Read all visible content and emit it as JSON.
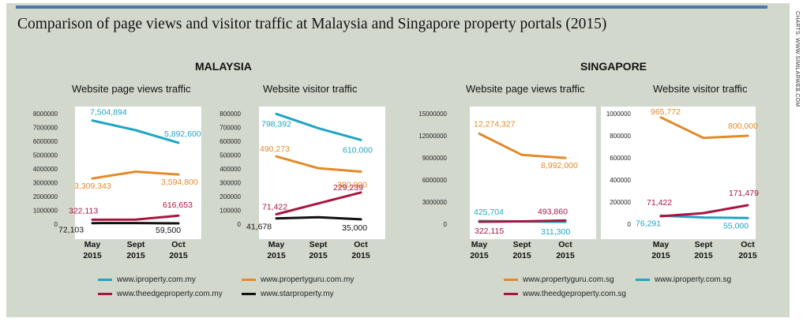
{
  "title": "Comparison of page views and visitor traffic at Malaysia and Singapore property portals (2015)",
  "credit": "CHARTS: WWW.SIMILARWEB.COM",
  "regions": {
    "malaysia": "MALAYSIA",
    "singapore": "SINGAPORE"
  },
  "colors": {
    "teal": "#1fa6c1",
    "orange": "#e38a2a",
    "crimson": "#a8163f",
    "black": "#111111",
    "background": "#d3d8cc",
    "topbar": "#4a78a8"
  },
  "legend": {
    "malaysia": [
      {
        "label": "www.iproperty.com.my",
        "color": "#1fa6c1"
      },
      {
        "label": "www.propertyguru.com.my",
        "color": "#e38a2a"
      },
      {
        "label": "www.theedgeproperty.com.my",
        "color": "#a8163f"
      },
      {
        "label": "www.starproperty.my",
        "color": "#111111"
      }
    ],
    "singapore": [
      {
        "label": "www.propertyguru.com.sg",
        "color": "#e38a2a"
      },
      {
        "label": "www.iproperty.com.sg",
        "color": "#1fa6c1"
      },
      {
        "label": "www.theedgeproperty.com.sg",
        "color": "#a8163f"
      }
    ]
  },
  "chart_data": [
    {
      "type": "line",
      "region": "MALAYSIA",
      "title": "Website page views traffic",
      "categories": [
        "May 2015",
        "Sept 2015",
        "Oct 2015"
      ],
      "ylim": [
        0,
        8000000
      ],
      "yticks": [
        "0",
        "1000000",
        "2000000",
        "3000000",
        "4000000",
        "5000000",
        "6000000",
        "7000000",
        "8000000"
      ],
      "series": [
        {
          "name": "www.iproperty.com.my",
          "color": "#1fa6c1",
          "values": [
            7504894,
            6800000,
            5892600
          ],
          "labels": [
            "7,504,894",
            "",
            "5,892,600"
          ]
        },
        {
          "name": "www.propertyguru.com.my",
          "color": "#e38a2a",
          "values": [
            3309343,
            3800000,
            3594800
          ],
          "labels": [
            "3,309,343",
            "",
            "3,594,800"
          ]
        },
        {
          "name": "www.theedgeproperty.com.my",
          "color": "#a8163f",
          "values": [
            322113,
            330000,
            616653
          ],
          "labels": [
            "322,113",
            "",
            "616,653"
          ]
        },
        {
          "name": "www.starproperty.my",
          "color": "#111111",
          "values": [
            72103,
            80000,
            59500
          ],
          "labels": [
            "72,103",
            "",
            "59,500"
          ]
        }
      ]
    },
    {
      "type": "line",
      "region": "MALAYSIA",
      "title": "Website visitor traffic",
      "categories": [
        "May 2015",
        "Sept 2015",
        "Oct 2015"
      ],
      "ylim": [
        0,
        800000
      ],
      "yticks": [
        "0",
        "100000",
        "200000",
        "300000",
        "400000",
        "500000",
        "600000",
        "700000",
        "800000"
      ],
      "series": [
        {
          "name": "www.iproperty.com.my",
          "color": "#1fa6c1",
          "values": [
            798392,
            695000,
            610000
          ],
          "labels": [
            "798,392",
            "",
            "610,000"
          ]
        },
        {
          "name": "www.propertyguru.com.my",
          "color": "#e38a2a",
          "values": [
            490273,
            405000,
            380000
          ],
          "labels": [
            "490,273",
            "",
            "380,000"
          ]
        },
        {
          "name": "www.theedgeproperty.com.my",
          "color": "#a8163f",
          "values": [
            71422,
            150000,
            229239
          ],
          "labels": [
            "71,422",
            "",
            "229,239"
          ]
        },
        {
          "name": "www.starproperty.my",
          "color": "#111111",
          "values": [
            41678,
            50000,
            35000
          ],
          "labels": [
            "41,678",
            "",
            "35,000"
          ]
        }
      ]
    },
    {
      "type": "line",
      "region": "SINGAPORE",
      "title": "Website page views traffic",
      "categories": [
        "May 2015",
        "Sept 2015",
        "Oct 2015"
      ],
      "ylim": [
        0,
        15000000
      ],
      "yticks": [
        "0",
        "3000000",
        "6000000",
        "9000000",
        "12000000",
        "15000000"
      ],
      "series": [
        {
          "name": "www.propertyguru.com.sg",
          "color": "#e38a2a",
          "values": [
            12274327,
            9400000,
            8992000
          ],
          "labels": [
            "12,274,327",
            "",
            "8,992,000"
          ]
        },
        {
          "name": "www.iproperty.com.sg",
          "color": "#1fa6c1",
          "values": [
            425704,
            360000,
            311300
          ],
          "labels": [
            "425,704",
            "",
            "311,300"
          ]
        },
        {
          "name": "www.theedgeproperty.com.sg",
          "color": "#a8163f",
          "values": [
            322115,
            380000,
            493860
          ],
          "labels": [
            "322,115",
            "",
            "493,860"
          ]
        }
      ]
    },
    {
      "type": "line",
      "region": "SINGAPORE",
      "title": "Website visitor traffic",
      "categories": [
        "May 2015",
        "Sept 2015",
        "Oct 2015"
      ],
      "ylim": [
        0,
        1000000
      ],
      "yticks": [
        "0",
        "200000",
        "400000",
        "600000",
        "800000",
        "1000000"
      ],
      "series": [
        {
          "name": "www.propertyguru.com.sg",
          "color": "#e38a2a",
          "values": [
            965772,
            780000,
            800000
          ],
          "labels": [
            "965,772",
            "",
            "800,000"
          ]
        },
        {
          "name": "www.iproperty.com.sg",
          "color": "#1fa6c1",
          "values": [
            76291,
            60000,
            55000
          ],
          "labels": [
            "76,291",
            "",
            "55,000"
          ]
        },
        {
          "name": "www.theedgeproperty.com.sg",
          "color": "#a8163f",
          "values": [
            71422,
            100000,
            171479
          ],
          "labels": [
            "71,422",
            "",
            "171,479"
          ]
        }
      ]
    }
  ]
}
